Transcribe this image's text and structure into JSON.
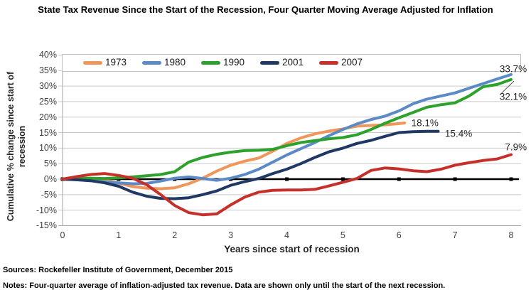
{
  "chart_data": {
    "type": "line",
    "title": "State Tax Revenue Since the Start of the Recession, Four Quarter Moving Average Adjusted for Inflation",
    "xlabel": "Years since start of recession",
    "ylabel": "Cumulative % change since start of recession",
    "xlim": [
      0,
      8.2
    ],
    "ylim": [
      -15,
      40
    ],
    "grid": true,
    "grid_color": "#C9C9C9",
    "axis_line_color": "#A6A6A6",
    "zero_line_color": "#000000",
    "legend_position": "top",
    "x_ticks": [
      0,
      1,
      2,
      3,
      4,
      5,
      6,
      7,
      8
    ],
    "y_ticks": [
      40,
      35,
      30,
      25,
      20,
      15,
      10,
      5,
      0,
      -5,
      -10,
      -15
    ],
    "y_tick_suffix": "%",
    "series": [
      {
        "name": "1973",
        "color": "#F0965A",
        "end_label": "18.1%",
        "x": [
          0,
          0.25,
          0.5,
          0.75,
          1,
          1.25,
          1.5,
          1.75,
          2,
          2.25,
          2.5,
          2.75,
          3,
          3.25,
          3.5,
          3.75,
          4,
          4.25,
          4.5,
          4.75,
          5,
          5.25,
          5.5,
          5.75,
          6,
          6.1
        ],
        "y": [
          0,
          0.1,
          0,
          -0.4,
          -1.3,
          -2.4,
          -2.9,
          -3.1,
          -2.8,
          -1.5,
          0.3,
          2.6,
          4.5,
          5.8,
          6.8,
          9.0,
          11.5,
          13.3,
          14.6,
          15.5,
          16.2,
          17.1,
          17.3,
          17.5,
          17.9,
          18.1
        ]
      },
      {
        "name": "1980",
        "color": "#5B8AC6",
        "end_label": "33.7%",
        "x": [
          0,
          0.25,
          0.5,
          0.75,
          1,
          1.25,
          1.5,
          1.75,
          2,
          2.25,
          2.5,
          2.75,
          3,
          3.25,
          3.5,
          3.75,
          4,
          4.25,
          4.5,
          4.75,
          5,
          5.25,
          5.5,
          5.75,
          6,
          6.25,
          6.5,
          6.75,
          7,
          7.25,
          7.5,
          7.75,
          8
        ],
        "y": [
          0,
          -0.2,
          -0.5,
          -0.9,
          -1.2,
          -1.5,
          -1.4,
          -0.6,
          0.3,
          0.7,
          0.2,
          -0.4,
          0.3,
          1.5,
          3.2,
          5.5,
          7.8,
          9.8,
          11.8,
          14.0,
          16.0,
          17.8,
          19.2,
          20.3,
          22.0,
          24.3,
          25.8,
          26.8,
          27.8,
          29.3,
          30.8,
          32.3,
          33.7
        ]
      },
      {
        "name": "1990",
        "color": "#2CA22C",
        "end_label": "32.1%",
        "x": [
          0,
          0.25,
          0.5,
          0.75,
          1,
          1.25,
          1.5,
          1.75,
          2,
          2.25,
          2.5,
          2.75,
          3,
          3.25,
          3.5,
          3.75,
          4,
          4.25,
          4.5,
          4.75,
          5,
          5.25,
          5.5,
          5.75,
          6,
          6.25,
          6.5,
          6.75,
          7,
          7.25,
          7.5,
          7.75,
          8
        ],
        "y": [
          0,
          0.2,
          0.3,
          0.2,
          0.4,
          0.7,
          1.1,
          1.5,
          2.4,
          5.5,
          7.0,
          8.0,
          8.7,
          9.2,
          9.3,
          9.6,
          10.8,
          11.8,
          12.4,
          13.0,
          13.4,
          14.3,
          16.0,
          18.0,
          19.8,
          21.5,
          23.2,
          24.0,
          24.6,
          26.8,
          29.8,
          30.5,
          32.1
        ]
      },
      {
        "name": "2001",
        "color": "#1F3864",
        "end_label": "15.4%",
        "x": [
          0,
          0.25,
          0.5,
          0.75,
          1,
          1.25,
          1.5,
          1.75,
          2,
          2.25,
          2.5,
          2.75,
          3,
          3.25,
          3.5,
          3.75,
          4,
          4.25,
          4.5,
          4.75,
          5,
          5.25,
          5.5,
          5.75,
          6,
          6.25,
          6.5,
          6.7
        ],
        "y": [
          0,
          -0.2,
          -0.5,
          -1.2,
          -2.3,
          -4.2,
          -5.5,
          -6.2,
          -6.3,
          -6.0,
          -5.0,
          -3.8,
          -2.0,
          -0.8,
          0.2,
          1.8,
          3.2,
          5.0,
          7.0,
          8.8,
          10.0,
          11.5,
          12.5,
          13.8,
          15.0,
          15.3,
          15.4,
          15.4
        ]
      },
      {
        "name": "2007",
        "color": "#C6302B",
        "end_label": "7.9%",
        "x": [
          0,
          0.25,
          0.5,
          0.75,
          1,
          1.25,
          1.5,
          1.75,
          2,
          2.25,
          2.5,
          2.75,
          3,
          3.25,
          3.5,
          3.75,
          4,
          4.25,
          4.5,
          4.75,
          5,
          5.25,
          5.5,
          5.75,
          6,
          6.25,
          6.5,
          6.75,
          7,
          7.25,
          7.5,
          7.75,
          8
        ],
        "y": [
          0,
          0.8,
          1.5,
          1.8,
          1.2,
          0.3,
          -1.8,
          -5.0,
          -8.5,
          -10.8,
          -11.5,
          -11.2,
          -8.3,
          -5.8,
          -4.2,
          -3.6,
          -3.5,
          -3.5,
          -3.3,
          -2.2,
          -1.0,
          0.2,
          2.8,
          3.6,
          3.3,
          2.7,
          2.4,
          3.2,
          4.5,
          5.3,
          6.0,
          6.5,
          7.9
        ]
      }
    ],
    "annotations": [
      {
        "text": "33.7%",
        "year": 8.28,
        "value": 35.6,
        "anchor": "end"
      },
      {
        "text": "32.1%",
        "year": 8.28,
        "value": 26.5,
        "anchor": "end"
      },
      {
        "text": "18.1%",
        "year": 6.22,
        "value": 18.1,
        "anchor": "start"
      },
      {
        "text": "15.4%",
        "year": 6.82,
        "value": 14.7,
        "anchor": "start"
      },
      {
        "text": "7.9%",
        "year": 8.28,
        "value": 10.3,
        "anchor": "end"
      }
    ],
    "leader_line": {
      "x1_year": 7.8,
      "y1_value": 27.2,
      "x2_year": 8.05,
      "y2_value": 31.6,
      "color": "#595959"
    }
  },
  "footer": {
    "sources": "Sources: Rockefeller Institute of Government, December 2015",
    "notes": "Notes: Four-quarter average of inflation-adjusted tax revenue. Data are shown only until the start of the next recession."
  }
}
